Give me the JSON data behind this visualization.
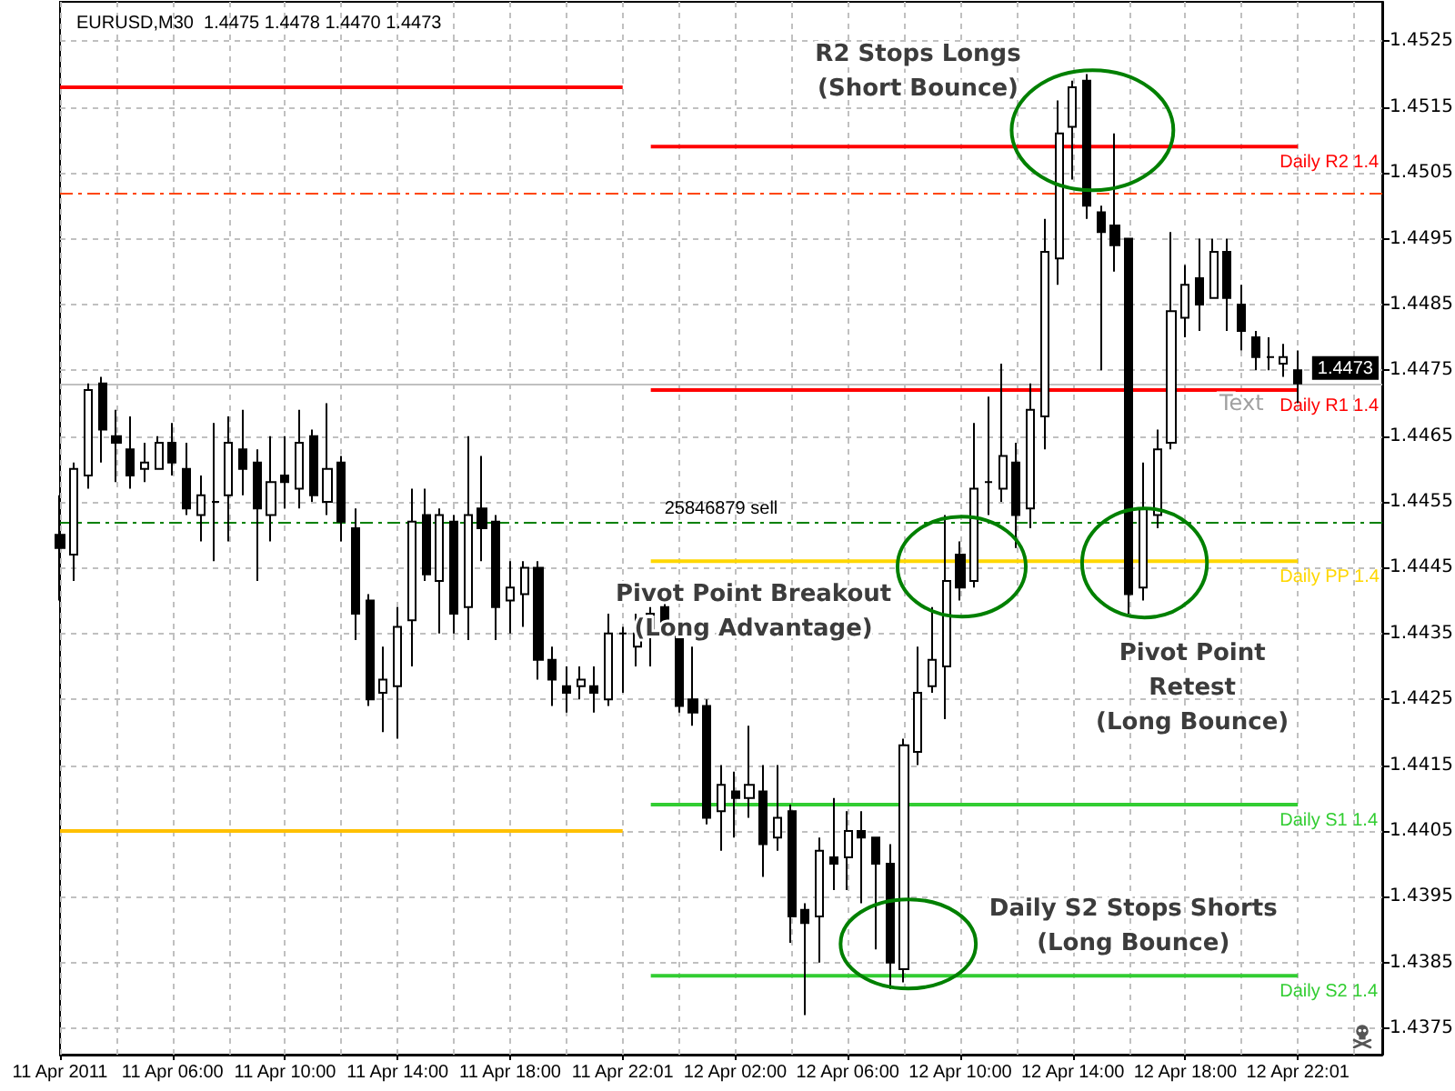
{
  "chart_data": {
    "type": "candlestick",
    "title": "EURUSD,M30  1.4475 1.4478 1.4470 1.4473",
    "color": "#000000",
    "categories": [
      "11 Apr 2011",
      null,
      null,
      null,
      null,
      null,
      null,
      null,
      "11 Apr 06:00",
      null,
      null,
      null,
      null,
      null,
      null,
      null,
      "11 Apr 10:00",
      null,
      null,
      null,
      null,
      null,
      null,
      null,
      "11 Apr 14:00",
      null,
      null,
      null,
      null,
      null,
      null,
      null,
      "11 Apr 18:00",
      null,
      null,
      null,
      null,
      null,
      null,
      null,
      "11 Apr 22:01",
      null,
      null,
      null,
      null,
      null,
      null,
      null,
      "12 Apr 02:00",
      null,
      null,
      null,
      null,
      null,
      null,
      null,
      "12 Apr 06:00",
      null,
      null,
      null,
      null,
      null,
      null,
      null,
      "12 Apr 10:00",
      null,
      null,
      null,
      null,
      null,
      null,
      null,
      "12 Apr 14:00",
      null,
      null,
      null,
      null,
      null,
      null,
      null,
      "12 Apr 18:00",
      null,
      null,
      null,
      null,
      null,
      null,
      null,
      "12 Apr 22:01"
    ],
    "ohlc": [
      [
        1.445,
        1.4456,
        1.444,
        1.4448
      ],
      [
        1.4447,
        1.4461,
        1.4443,
        1.446
      ],
      [
        1.4459,
        1.4473,
        1.4457,
        1.4472
      ],
      [
        1.4473,
        1.4474,
        1.4461,
        1.4466
      ],
      [
        1.4465,
        1.4469,
        1.4458,
        1.4464
      ],
      [
        1.4463,
        1.4468,
        1.4457,
        1.4459
      ],
      [
        1.446,
        1.4464,
        1.4458,
        1.4461
      ],
      [
        1.446,
        1.4465,
        1.446,
        1.4464
      ],
      [
        1.4464,
        1.4467,
        1.4459,
        1.4461
      ],
      [
        1.446,
        1.4464,
        1.4453,
        1.4454
      ],
      [
        1.4453,
        1.4459,
        1.4449,
        1.4456
      ],
      [
        1.4455,
        1.4467,
        1.4446,
        1.4455
      ],
      [
        1.4456,
        1.4468,
        1.4449,
        1.4464
      ],
      [
        1.4463,
        1.4469,
        1.4456,
        1.446
      ],
      [
        1.4461,
        1.4463,
        1.4443,
        1.4454
      ],
      [
        1.4453,
        1.4465,
        1.4449,
        1.4458
      ],
      [
        1.4459,
        1.4465,
        1.4454,
        1.4458
      ],
      [
        1.4457,
        1.4469,
        1.4454,
        1.4464
      ],
      [
        1.4465,
        1.4466,
        1.4455,
        1.4456
      ],
      [
        1.4455,
        1.447,
        1.4453,
        1.446
      ],
      [
        1.4461,
        1.4462,
        1.4449,
        1.4452
      ],
      [
        1.4451,
        1.4454,
        1.4434,
        1.4438
      ],
      [
        1.444,
        1.4441,
        1.4424,
        1.4425
      ],
      [
        1.4426,
        1.4433,
        1.442,
        1.4428
      ],
      [
        1.4427,
        1.4439,
        1.4419,
        1.4436
      ],
      [
        1.4437,
        1.4457,
        1.443,
        1.4452
      ],
      [
        1.4453,
        1.4457,
        1.4443,
        1.4444
      ],
      [
        1.4443,
        1.4454,
        1.4435,
        1.4453
      ],
      [
        1.4452,
        1.4453,
        1.4435,
        1.4438
      ],
      [
        1.4439,
        1.4465,
        1.4434,
        1.4453
      ],
      [
        1.4454,
        1.4462,
        1.4446,
        1.4451
      ],
      [
        1.4452,
        1.4453,
        1.4434,
        1.4439
      ],
      [
        1.444,
        1.4446,
        1.4435,
        1.4442
      ],
      [
        1.4441,
        1.4446,
        1.4436,
        1.4445
      ],
      [
        1.4445,
        1.4446,
        1.4428,
        1.4431
      ],
      [
        1.4431,
        1.4433,
        1.4424,
        1.4428
      ],
      [
        1.4427,
        1.443,
        1.4423,
        1.4426
      ],
      [
        1.4427,
        1.443,
        1.4425,
        1.4428
      ],
      [
        1.4427,
        1.443,
        1.4423,
        1.4426
      ],
      [
        1.4425,
        1.4438,
        1.4424,
        1.4435
      ],
      [
        1.4435,
        1.4436,
        1.4426,
        1.4435
      ],
      [
        1.4433,
        1.4438,
        1.443,
        1.4435
      ],
      [
        1.4435,
        1.4439,
        1.443,
        1.4438
      ],
      [
        1.4439,
        1.4442,
        1.4435,
        1.4436
      ],
      [
        1.4436,
        1.4437,
        1.4423,
        1.4424
      ],
      [
        1.4425,
        1.4433,
        1.4421,
        1.4423
      ],
      [
        1.4424,
        1.4425,
        1.4406,
        1.4407
      ],
      [
        1.4408,
        1.4415,
        1.4402,
        1.4412
      ],
      [
        1.4411,
        1.4414,
        1.4404,
        1.441
      ],
      [
        1.441,
        1.4421,
        1.4407,
        1.4412
      ],
      [
        1.4411,
        1.4415,
        1.4398,
        1.4403
      ],
      [
        1.4404,
        1.4415,
        1.4402,
        1.4407
      ],
      [
        1.4408,
        1.4409,
        1.4388,
        1.4392
      ],
      [
        1.4393,
        1.4394,
        1.4377,
        1.4391
      ],
      [
        1.4392,
        1.4404,
        1.4385,
        1.4402
      ],
      [
        1.4401,
        1.441,
        1.4396,
        1.44
      ],
      [
        1.4401,
        1.4408,
        1.4396,
        1.4405
      ],
      [
        1.4405,
        1.4408,
        1.4394,
        1.4404
      ],
      [
        1.4404,
        1.4404,
        1.4387,
        1.44
      ],
      [
        1.44,
        1.4403,
        1.4381,
        1.4385
      ],
      [
        1.4384,
        1.4419,
        1.4382,
        1.4418
      ],
      [
        1.4417,
        1.4433,
        1.4415,
        1.4426
      ],
      [
        1.4427,
        1.4439,
        1.4426,
        1.4431
      ],
      [
        1.443,
        1.4453,
        1.4422,
        1.4443
      ],
      [
        1.4447,
        1.4449,
        1.444,
        1.4442
      ],
      [
        1.4443,
        1.4467,
        1.4442,
        1.4457
      ],
      [
        1.4458,
        1.4471,
        1.4453,
        1.4458
      ],
      [
        1.4457,
        1.4476,
        1.4455,
        1.4462
      ],
      [
        1.4461,
        1.4464,
        1.4448,
        1.4453
      ],
      [
        1.4454,
        1.4473,
        1.4451,
        1.4469
      ],
      [
        1.4468,
        1.4498,
        1.4463,
        1.4493
      ],
      [
        1.4492,
        1.4516,
        1.4488,
        1.4511
      ],
      [
        1.4512,
        1.4519,
        1.4504,
        1.4518
      ],
      [
        1.4519,
        1.452,
        1.4498,
        1.45
      ],
      [
        1.4499,
        1.45,
        1.4475,
        1.4496
      ],
      [
        1.4497,
        1.4511,
        1.449,
        1.4494
      ],
      [
        1.4495,
        1.4495,
        1.4438,
        1.4441
      ],
      [
        1.4442,
        1.4461,
        1.444,
        1.4454
      ],
      [
        1.4453,
        1.4466,
        1.4451,
        1.4463
      ],
      [
        1.4464,
        1.4496,
        1.4463,
        1.4484
      ],
      [
        1.4483,
        1.4491,
        1.448,
        1.4488
      ],
      [
        1.4489,
        1.4495,
        1.4481,
        1.4485
      ],
      [
        1.4486,
        1.4495,
        1.4486,
        1.4493
      ],
      [
        1.4493,
        1.4495,
        1.4481,
        1.4486
      ],
      [
        1.4485,
        1.4488,
        1.4478,
        1.4481
      ],
      [
        1.448,
        1.4481,
        1.4475,
        1.4477
      ],
      [
        1.4477,
        1.448,
        1.4475,
        1.4477
      ],
      [
        1.4476,
        1.4479,
        1.4474,
        1.4477
      ],
      [
        1.4475,
        1.4478,
        1.447,
        1.4473
      ]
    ],
    "series": [
      {
        "type": "line",
        "color": "#ff0000",
        "values": [
          1.4518,
          1.4518,
          1.4518,
          1.4518,
          1.4518,
          1.4518,
          1.4518,
          1.4518,
          1.4518,
          1.4518,
          1.4518,
          1.4518,
          1.4518,
          1.4518,
          1.4518,
          1.4518,
          1.4518,
          1.4518,
          1.4518,
          1.4518,
          1.4518,
          1.4518,
          1.4518,
          1.4518,
          1.4518,
          1.4518,
          1.4518,
          1.4518,
          1.4518,
          1.4518,
          1.4518,
          1.4518,
          1.4518,
          1.4518,
          1.4518,
          1.4518,
          1.4518,
          1.4518,
          1.4518,
          1.4518,
          1.4518,
          null,
          null,
          null,
          null,
          null,
          null,
          null,
          null,
          null,
          null,
          null,
          null,
          null,
          null,
          null,
          null,
          null,
          null,
          null,
          null,
          null,
          null,
          null,
          null,
          null,
          null,
          null,
          null,
          null,
          null,
          null,
          null,
          null,
          null,
          null,
          null,
          null,
          null,
          null,
          null,
          null,
          null,
          null,
          null,
          null,
          null,
          null,
          null
        ]
      },
      {
        "type": "line",
        "color": "#ffc000",
        "values": [
          1.4405,
          1.4405,
          1.4405,
          1.4405,
          1.4405,
          1.4405,
          1.4405,
          1.4405,
          1.4405,
          1.4405,
          1.4405,
          1.4405,
          1.4405,
          1.4405,
          1.4405,
          1.4405,
          1.4405,
          1.4405,
          1.4405,
          1.4405,
          1.4405,
          1.4405,
          1.4405,
          1.4405,
          1.4405,
          1.4405,
          1.4405,
          1.4405,
          1.4405,
          1.4405,
          1.4405,
          1.4405,
          1.4405,
          1.4405,
          1.4405,
          1.4405,
          1.4405,
          1.4405,
          1.4405,
          1.4405,
          1.4405,
          null,
          null,
          null,
          null,
          null,
          null,
          null,
          null,
          null,
          null,
          null,
          null,
          null,
          null,
          null,
          null,
          null,
          null,
          null,
          null,
          null,
          null,
          null,
          null,
          null,
          null,
          null,
          null,
          null,
          null,
          null,
          null,
          null,
          null,
          null,
          null,
          null,
          null,
          null,
          null,
          null,
          null,
          null,
          null,
          null,
          null,
          null,
          null
        ]
      },
      {
        "type": "line",
        "name": "Daily R2 1.4",
        "color": "#ff0000",
        "values": [
          null,
          null,
          null,
          null,
          null,
          null,
          null,
          null,
          null,
          null,
          null,
          null,
          null,
          null,
          null,
          null,
          null,
          null,
          null,
          null,
          null,
          null,
          null,
          null,
          null,
          null,
          null,
          null,
          null,
          null,
          null,
          null,
          null,
          null,
          null,
          null,
          null,
          null,
          null,
          null,
          null,
          null,
          1.4509,
          1.4509,
          1.4509,
          1.4509,
          1.4509,
          1.4509,
          1.4509,
          1.4509,
          1.4509,
          1.4509,
          1.4509,
          1.4509,
          1.4509,
          1.4509,
          1.4509,
          1.4509,
          1.4509,
          1.4509,
          1.4509,
          1.4509,
          1.4509,
          1.4509,
          1.4509,
          1.4509,
          1.4509,
          1.4509,
          1.4509,
          1.4509,
          1.4509,
          1.4509,
          1.4509,
          1.4509,
          1.4509,
          1.4509,
          1.4509,
          1.4509,
          1.4509,
          1.4509,
          1.4509,
          1.4509,
          1.4509,
          1.4509,
          1.4509,
          1.4509,
          1.4509,
          1.4509,
          1.4509
        ]
      },
      {
        "type": "line",
        "name": "Daily R1 1.4",
        "color": "#ff0000",
        "values": [
          null,
          null,
          null,
          null,
          null,
          null,
          null,
          null,
          null,
          null,
          null,
          null,
          null,
          null,
          null,
          null,
          null,
          null,
          null,
          null,
          null,
          null,
          null,
          null,
          null,
          null,
          null,
          null,
          null,
          null,
          null,
          null,
          null,
          null,
          null,
          null,
          null,
          null,
          null,
          null,
          null,
          null,
          1.4472,
          1.4472,
          1.4472,
          1.4472,
          1.4472,
          1.4472,
          1.4472,
          1.4472,
          1.4472,
          1.4472,
          1.4472,
          1.4472,
          1.4472,
          1.4472,
          1.4472,
          1.4472,
          1.4472,
          1.4472,
          1.4472,
          1.4472,
          1.4472,
          1.4472,
          1.4472,
          1.4472,
          1.4472,
          1.4472,
          1.4472,
          1.4472,
          1.4472,
          1.4472,
          1.4472,
          1.4472,
          1.4472,
          1.4472,
          1.4472,
          1.4472,
          1.4472,
          1.4472,
          1.4472,
          1.4472,
          1.4472,
          1.4472,
          1.4472,
          1.4472,
          1.4472,
          1.4472,
          1.4472
        ]
      },
      {
        "type": "line",
        "name": "Daily PP 1.4",
        "color": "#ffd700",
        "values": [
          null,
          null,
          null,
          null,
          null,
          null,
          null,
          null,
          null,
          null,
          null,
          null,
          null,
          null,
          null,
          null,
          null,
          null,
          null,
          null,
          null,
          null,
          null,
          null,
          null,
          null,
          null,
          null,
          null,
          null,
          null,
          null,
          null,
          null,
          null,
          null,
          null,
          null,
          null,
          null,
          null,
          null,
          1.4446,
          1.4446,
          1.4446,
          1.4446,
          1.4446,
          1.4446,
          1.4446,
          1.4446,
          1.4446,
          1.4446,
          1.4446,
          1.4446,
          1.4446,
          1.4446,
          1.4446,
          1.4446,
          1.4446,
          1.4446,
          1.4446,
          1.4446,
          1.4446,
          1.4446,
          1.4446,
          1.4446,
          1.4446,
          1.4446,
          1.4446,
          1.4446,
          1.4446,
          1.4446,
          1.4446,
          1.4446,
          1.4446,
          1.4446,
          1.4446,
          1.4446,
          1.4446,
          1.4446,
          1.4446,
          1.4446,
          1.4446,
          1.4446,
          1.4446,
          1.4446,
          1.4446,
          1.4446,
          1.4446
        ]
      },
      {
        "type": "line",
        "name": "Daily S1 1.4",
        "color": "#32cd32",
        "values": [
          null,
          null,
          null,
          null,
          null,
          null,
          null,
          null,
          null,
          null,
          null,
          null,
          null,
          null,
          null,
          null,
          null,
          null,
          null,
          null,
          null,
          null,
          null,
          null,
          null,
          null,
          null,
          null,
          null,
          null,
          null,
          null,
          null,
          null,
          null,
          null,
          null,
          null,
          null,
          null,
          null,
          null,
          1.4409,
          1.4409,
          1.4409,
          1.4409,
          1.4409,
          1.4409,
          1.4409,
          1.4409,
          1.4409,
          1.4409,
          1.4409,
          1.4409,
          1.4409,
          1.4409,
          1.4409,
          1.4409,
          1.4409,
          1.4409,
          1.4409,
          1.4409,
          1.4409,
          1.4409,
          1.4409,
          1.4409,
          1.4409,
          1.4409,
          1.4409,
          1.4409,
          1.4409,
          1.4409,
          1.4409,
          1.4409,
          1.4409,
          1.4409,
          1.4409,
          1.4409,
          1.4409,
          1.4409,
          1.4409,
          1.4409,
          1.4409,
          1.4409,
          1.4409,
          1.4409,
          1.4409,
          1.4409,
          1.4409
        ]
      },
      {
        "type": "line",
        "name": "Daily S2 1.4",
        "color": "#32cd32",
        "values": [
          null,
          null,
          null,
          null,
          null,
          null,
          null,
          null,
          null,
          null,
          null,
          null,
          null,
          null,
          null,
          null,
          null,
          null,
          null,
          null,
          null,
          null,
          null,
          null,
          null,
          null,
          null,
          null,
          null,
          null,
          null,
          null,
          null,
          null,
          null,
          null,
          null,
          null,
          null,
          null,
          null,
          null,
          1.4383,
          1.4383,
          1.4383,
          1.4383,
          1.4383,
          1.4383,
          1.4383,
          1.4383,
          1.4383,
          1.4383,
          1.4383,
          1.4383,
          1.4383,
          1.4383,
          1.4383,
          1.4383,
          1.4383,
          1.4383,
          1.4383,
          1.4383,
          1.4383,
          1.4383,
          1.4383,
          1.4383,
          1.4383,
          1.4383,
          1.4383,
          1.4383,
          1.4383,
          1.4383,
          1.4383,
          1.4383,
          1.4383,
          1.4383,
          1.4383,
          1.4383,
          1.4383,
          1.4383,
          1.4383,
          1.4383,
          1.4383,
          1.4383,
          1.4383,
          1.4383,
          1.4383,
          1.4383,
          1.4383
        ]
      }
    ],
    "ref_lines": [
      {
        "axis": "y",
        "value": 1.4473,
        "label": "1.4473",
        "color": "#c0c0c0"
      },
      {
        "axis": "y",
        "value": 1.4452,
        "label": "25846879 sell",
        "color": "#008000",
        "line_style": "dashed"
      },
      {
        "axis": "y",
        "value": 1.4502,
        "color": "#ff4500",
        "line_style": "dashed"
      }
    ],
    "annotations": [
      "R2 Stops Longs\n(Short Bounce)",
      "Pivot Point Breakout\n(Long Advantage)",
      "Pivot Point\nRetest\n(Long Bounce)",
      "Daily S2 Stops Shorts\n(Long Bounce)",
      "Text"
    ],
    "ylim": [
      1.4371,
      1.4531
    ],
    "yticks": [
      1.4375,
      1.4385,
      1.4395,
      1.4405,
      1.4415,
      1.4425,
      1.4435,
      1.4445,
      1.4455,
      1.4465,
      1.4475,
      1.4485,
      1.4495,
      1.4505,
      1.4515,
      1.4525
    ],
    "grid": true
  }
}
